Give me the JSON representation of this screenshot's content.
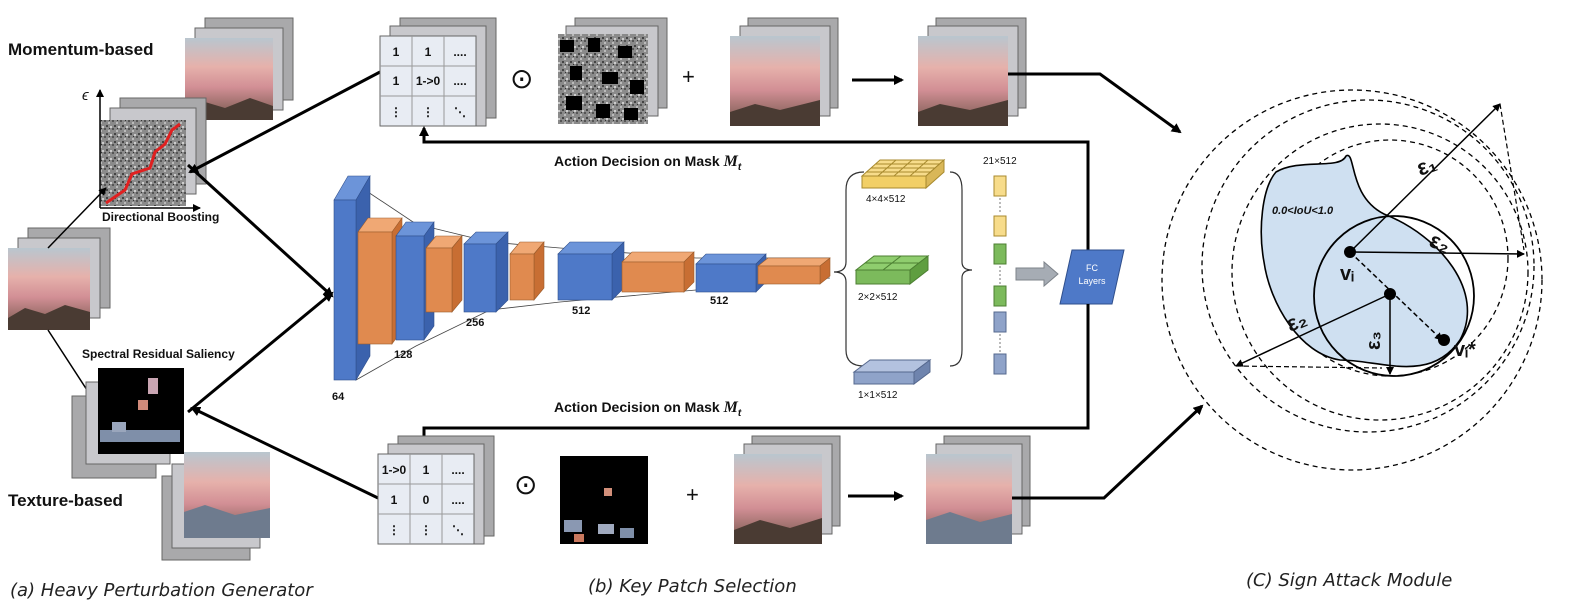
{
  "generator": {
    "momentum_label": "Momentum-based",
    "texture_label": "Texture-based",
    "epsilon_axis_label": "ϵ",
    "directional_boosting_label": "Directional Boosting",
    "saliency_label": "Spectral Residual Saliency"
  },
  "patch_selection": {
    "top_mask": {
      "cells": [
        "1",
        "1",
        "....",
        "1",
        "1->0",
        "....",
        "⋮",
        "⋮",
        "⋱"
      ]
    },
    "bottom_mask": {
      "cells": [
        "1->0",
        "1",
        "....",
        "1",
        "0",
        "....",
        "⋮",
        "⋮",
        "⋱"
      ]
    },
    "hadamard_symbol": "⊙",
    "plus_symbol": "+",
    "action_label": "Action Decision on Mask ",
    "mask_symbol": "M",
    "mask_subscript": "t",
    "cnn_channel_labels": [
      "64",
      "128",
      "256",
      "512",
      "512"
    ],
    "pooling_labels": [
      "4×4×512",
      "2×2×512",
      "1×1×512"
    ],
    "concat_label": "21×512",
    "fc_label_line1": "FC",
    "fc_label_line2": "Layers"
  },
  "sign_attack": {
    "iou_label": "0.0<IoU<1.0",
    "eps1": "ε₁",
    "eps2_a": "ε₂",
    "eps2_b": "ε₂",
    "eps3": "ε₃",
    "vi": "vᵢ",
    "vi_star": "vᵢ*"
  },
  "captions": {
    "a": "(a) Heavy Perturbation Generator",
    "b": "(b) Key Patch Selection",
    "c": "(C) Sign Attack Module"
  },
  "colors": {
    "cnn_blue": "#4e79c8",
    "cnn_orange": "#e08a4f",
    "pool_yellow": "#f7dc8b",
    "pool_green": "#7cba5c",
    "pool_blue": "#8fa3c9",
    "region_fill": "#cfe0f1"
  }
}
